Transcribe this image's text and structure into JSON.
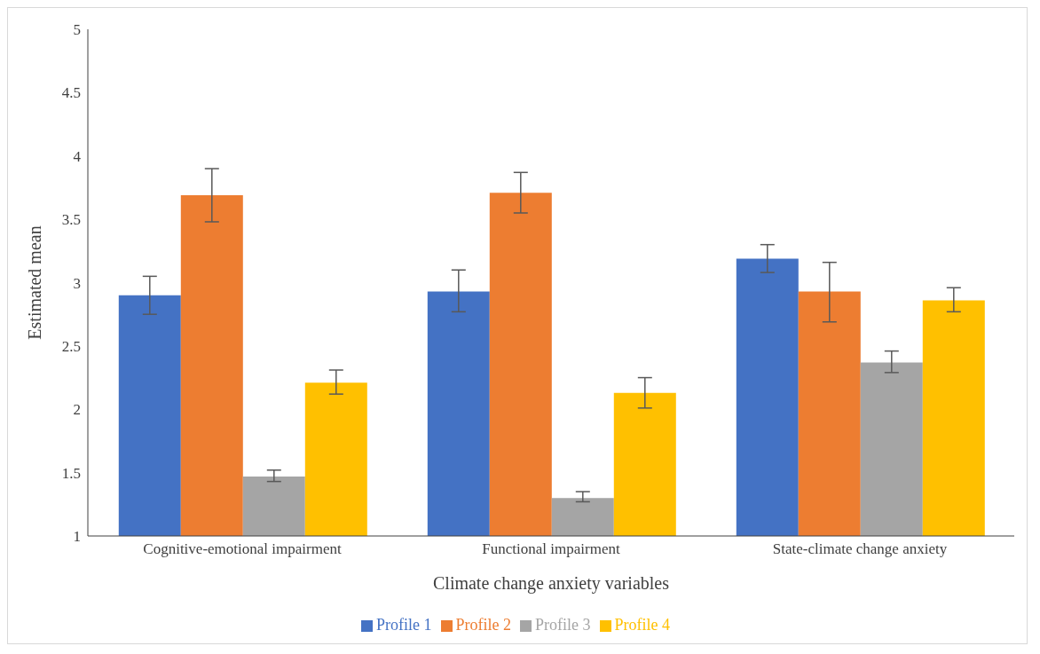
{
  "chart_data": {
    "type": "bar",
    "xlabel": "Climate change anxiety variables",
    "ylabel": "Estimated mean",
    "categories": [
      "Cognitive-emotional impairment",
      "Functional impairment",
      "State-climate change anxiety"
    ],
    "series": [
      {
        "name": "Profile 1",
        "color": "#4472c4",
        "values": [
          2.9,
          2.93,
          3.19
        ],
        "errors": [
          [
            2.75,
            3.05
          ],
          [
            2.77,
            3.1
          ],
          [
            3.08,
            3.3
          ]
        ]
      },
      {
        "name": "Profile 2",
        "color": "#ed7d31",
        "values": [
          3.69,
          3.71,
          2.93
        ],
        "errors": [
          [
            3.48,
            3.9
          ],
          [
            3.55,
            3.87
          ],
          [
            2.69,
            3.16
          ]
        ]
      },
      {
        "name": "Profile 3",
        "color": "#a5a5a5",
        "values": [
          1.47,
          1.3,
          2.37
        ],
        "errors": [
          [
            1.43,
            1.52
          ],
          [
            1.27,
            1.35
          ],
          [
            2.29,
            2.46
          ]
        ]
      },
      {
        "name": "Profile 4",
        "color": "#ffc000",
        "values": [
          2.21,
          2.13,
          2.86
        ],
        "errors": [
          [
            2.12,
            2.31
          ],
          [
            2.01,
            2.25
          ],
          [
            2.77,
            2.96
          ]
        ]
      }
    ],
    "ylim": [
      1,
      5
    ],
    "yticks": [
      1,
      1.5,
      2,
      2.5,
      3,
      3.5,
      4,
      4.5,
      5
    ],
    "grid": false,
    "legend": "bottom"
  }
}
